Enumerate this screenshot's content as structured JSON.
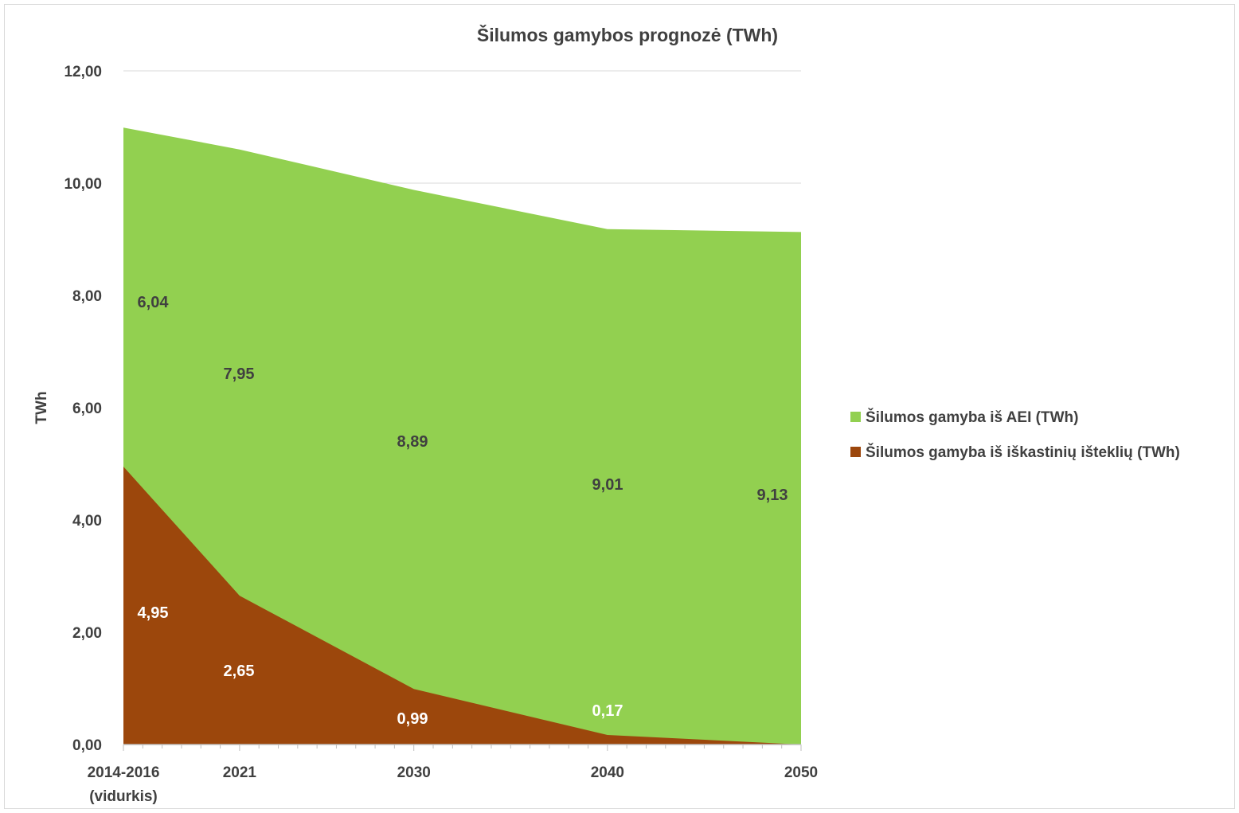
{
  "colors": {
    "renewable": "#92d050",
    "fossil": "#9c470c",
    "grid": "#d9d9d9",
    "axis": "#bfbfbf",
    "text": "#404040"
  },
  "chart_data": {
    "type": "area",
    "stacked": true,
    "title": "Šilumos gamybos  prognozė (TWh)",
    "xlabel": "",
    "ylabel": "TWh",
    "ylim": [
      0,
      12
    ],
    "yticks": [
      "0,00",
      "2,00",
      "4,00",
      "6,00",
      "8,00",
      "10,00",
      "12,00"
    ],
    "x_labels": [
      [
        "2014-2016",
        "(vidurkis)"
      ],
      [
        "2021"
      ],
      [
        "2030"
      ],
      [
        "2040"
      ],
      [
        "2050"
      ]
    ],
    "x": [
      2015,
      2021,
      2030,
      2040,
      2050
    ],
    "grid": true,
    "legend_position": "right",
    "series": [
      {
        "name": "Šilumos  gamyba iš iškastinių išteklių (TWh)",
        "values": [
          4.95,
          2.65,
          0.99,
          0.17,
          0
        ],
        "labels": [
          "4,95",
          "2,65",
          "0,99",
          "0,17",
          ""
        ]
      },
      {
        "name": "Šilumos gamyba iš AEI (TWh)",
        "values": [
          6.04,
          7.95,
          8.89,
          9.01,
          9.13
        ],
        "labels": [
          "6,04",
          "7,95",
          "8,89",
          "9,01",
          "9,13"
        ]
      }
    ],
    "legend": [
      "Šilumos gamyba iš AEI (TWh)",
      "Šilumos  gamyba iš iškastinių išteklių (TWh)"
    ]
  }
}
